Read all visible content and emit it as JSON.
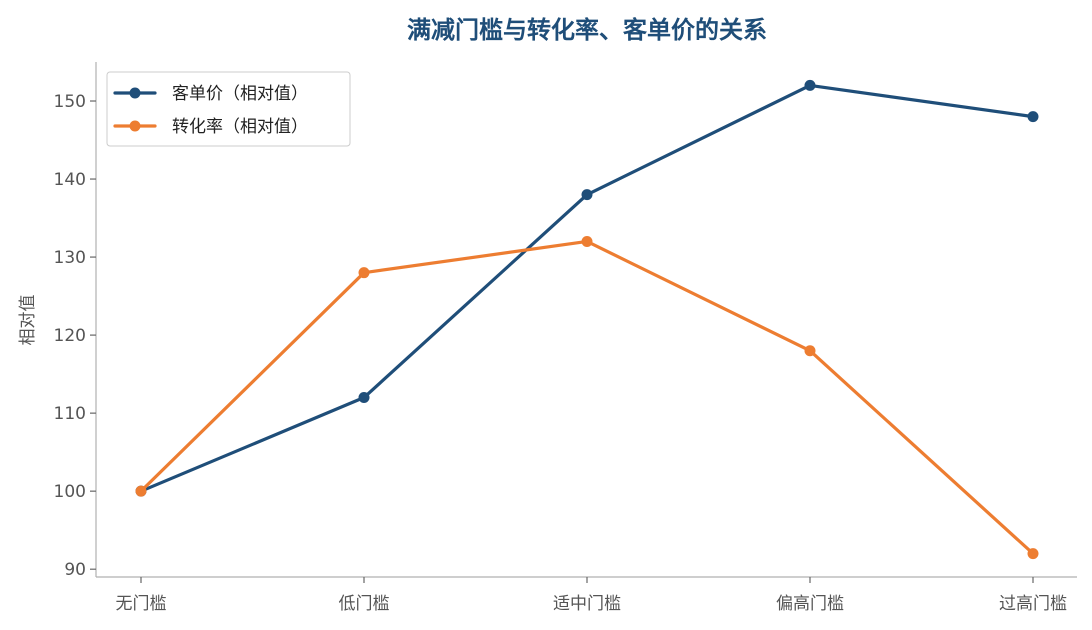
{
  "chart_data": {
    "type": "line",
    "title": "满减门槛与转化率、客单价的关系",
    "xlabel": "",
    "ylabel": "相对值",
    "categories": [
      "无门槛",
      "低门槛",
      "适中门槛",
      "偏高门槛",
      "过高门槛"
    ],
    "yticks": [
      90,
      100,
      110,
      120,
      130,
      140,
      150
    ],
    "ylim": [
      89,
      155
    ],
    "grid": false,
    "legend_position": "top-left",
    "series": [
      {
        "name": "客单价（相对值）",
        "color": "#1f4e79",
        "values": [
          100,
          112,
          138,
          152,
          148
        ]
      },
      {
        "name": "转化率（相对值）",
        "color": "#ed7d31",
        "values": [
          100,
          128,
          132,
          118,
          92
        ]
      }
    ]
  }
}
